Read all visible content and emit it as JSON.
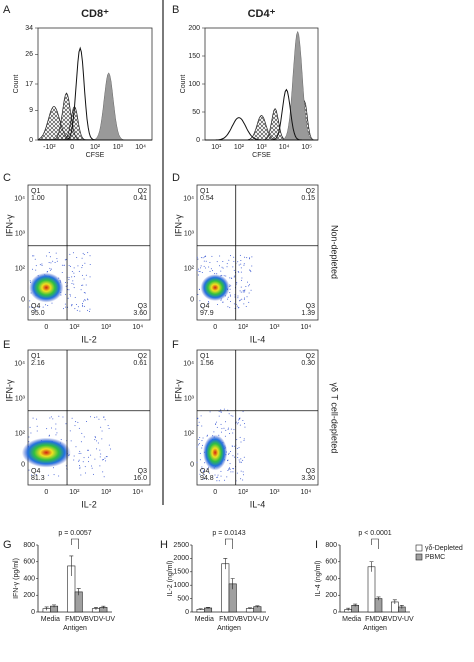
{
  "panel_letters": [
    "A",
    "B",
    "C",
    "D",
    "E",
    "F",
    "G",
    "H",
    "I"
  ],
  "histograms": [
    {
      "title": "CD8⁺",
      "ylabel": "Count",
      "xlabel": "CFSE",
      "ylim": [
        0,
        34
      ],
      "yticks": [
        0,
        9,
        17,
        26,
        34
      ],
      "xtick_labels": [
        "-10²",
        "0",
        "10²",
        "10³",
        "10⁴"
      ]
    },
    {
      "title": "CD4⁺",
      "ylabel": "Count",
      "xlabel": "CFSE",
      "ylim": [
        0,
        200
      ],
      "yticks": [
        0,
        50,
        100,
        150,
        200
      ],
      "xtick_labels": [
        "10¹",
        "10²",
        "10³",
        "10⁴",
        "10⁵"
      ]
    }
  ],
  "flow_tick_labels": [
    "0",
    "10²",
    "10³",
    "10⁴"
  ],
  "flow_plots": [
    {
      "xlabel": "IL-2",
      "ylabel": "IFN-γ",
      "quadrants": [
        {
          "name": "Q1",
          "value": "1.00"
        },
        {
          "name": "Q2",
          "value": "0.41"
        },
        {
          "name": "Q3",
          "value": "3.60"
        },
        {
          "name": "Q4",
          "value": "95.0"
        }
      ]
    },
    {
      "xlabel": "IL-4",
      "ylabel": "IFN-γ",
      "quadrants": [
        {
          "name": "Q1",
          "value": "0.54"
        },
        {
          "name": "Q2",
          "value": "0.15"
        },
        {
          "name": "Q3",
          "value": "1.39"
        },
        {
          "name": "Q4",
          "value": "97.9"
        }
      ]
    },
    {
      "xlabel": "IL-2",
      "ylabel": "IFN-γ",
      "quadrants": [
        {
          "name": "Q1",
          "value": "2.16"
        },
        {
          "name": "Q2",
          "value": "0.61"
        },
        {
          "name": "Q3",
          "value": "16.0"
        },
        {
          "name": "Q4",
          "value": "81.3"
        }
      ]
    },
    {
      "xlabel": "IL-4",
      "ylabel": "IFN-γ",
      "quadrants": [
        {
          "name": "Q1",
          "value": "1.56"
        },
        {
          "name": "Q2",
          "value": "0.30"
        },
        {
          "name": "Q3",
          "value": "3.30"
        },
        {
          "name": "Q4",
          "value": "94.8"
        }
      ]
    }
  ],
  "side_labels": [
    "Non-depleted",
    "γδ T cell-depleted"
  ],
  "chart_data": [
    {
      "type": "bar",
      "ylabel": "IFN-γ (pg/ml)",
      "xlabel": "Antigen",
      "annotation": "p = 0.0057",
      "categories": [
        "Media",
        "FMDV",
        "BVDV-UV"
      ],
      "ylim": [
        0,
        800
      ],
      "yticks": [
        0,
        200,
        400,
        600,
        800
      ],
      "series": [
        {
          "color": "#ffffff",
          "values": [
            40,
            550,
            40
          ],
          "errors": [
            20,
            120,
            15
          ]
        },
        {
          "color": "#a0a0a0",
          "values": [
            70,
            240,
            55
          ],
          "errors": [
            15,
            40,
            15
          ]
        }
      ]
    },
    {
      "type": "bar",
      "ylabel": "IL-2 (ng/ml)",
      "xlabel": "Antigen",
      "annotation": "p = 0.0143",
      "categories": [
        "Media",
        "FMDV",
        "BVDV-UV"
      ],
      "ylim": [
        0,
        2500
      ],
      "yticks": [
        0,
        500,
        1000,
        1500,
        2000,
        2500
      ],
      "series": [
        {
          "color": "#ffffff",
          "values": [
            100,
            1800,
            130
          ],
          "errors": [
            20,
            200,
            25
          ]
        },
        {
          "color": "#a0a0a0",
          "values": [
            150,
            1050,
            200
          ],
          "errors": [
            25,
            200,
            30
          ]
        }
      ]
    },
    {
      "type": "bar",
      "ylabel": "IL-4 (ng/ml)",
      "xlabel": "Antigen",
      "annotation": "p < 0.0001",
      "legend": "right",
      "categories": [
        "Media",
        "FMDV",
        "BVDV-UV"
      ],
      "ylim": [
        0,
        800
      ],
      "yticks": [
        0,
        200,
        400,
        600,
        800
      ],
      "series": [
        {
          "name": "γδ-Depleted",
          "color": "#ffffff",
          "values": [
            30,
            540,
            120
          ],
          "errors": [
            15,
            60,
            25
          ]
        },
        {
          "name": "PBMC",
          "color": "#a0a0a0",
          "values": [
            80,
            160,
            60
          ],
          "errors": [
            15,
            20,
            20
          ]
        }
      ]
    }
  ]
}
